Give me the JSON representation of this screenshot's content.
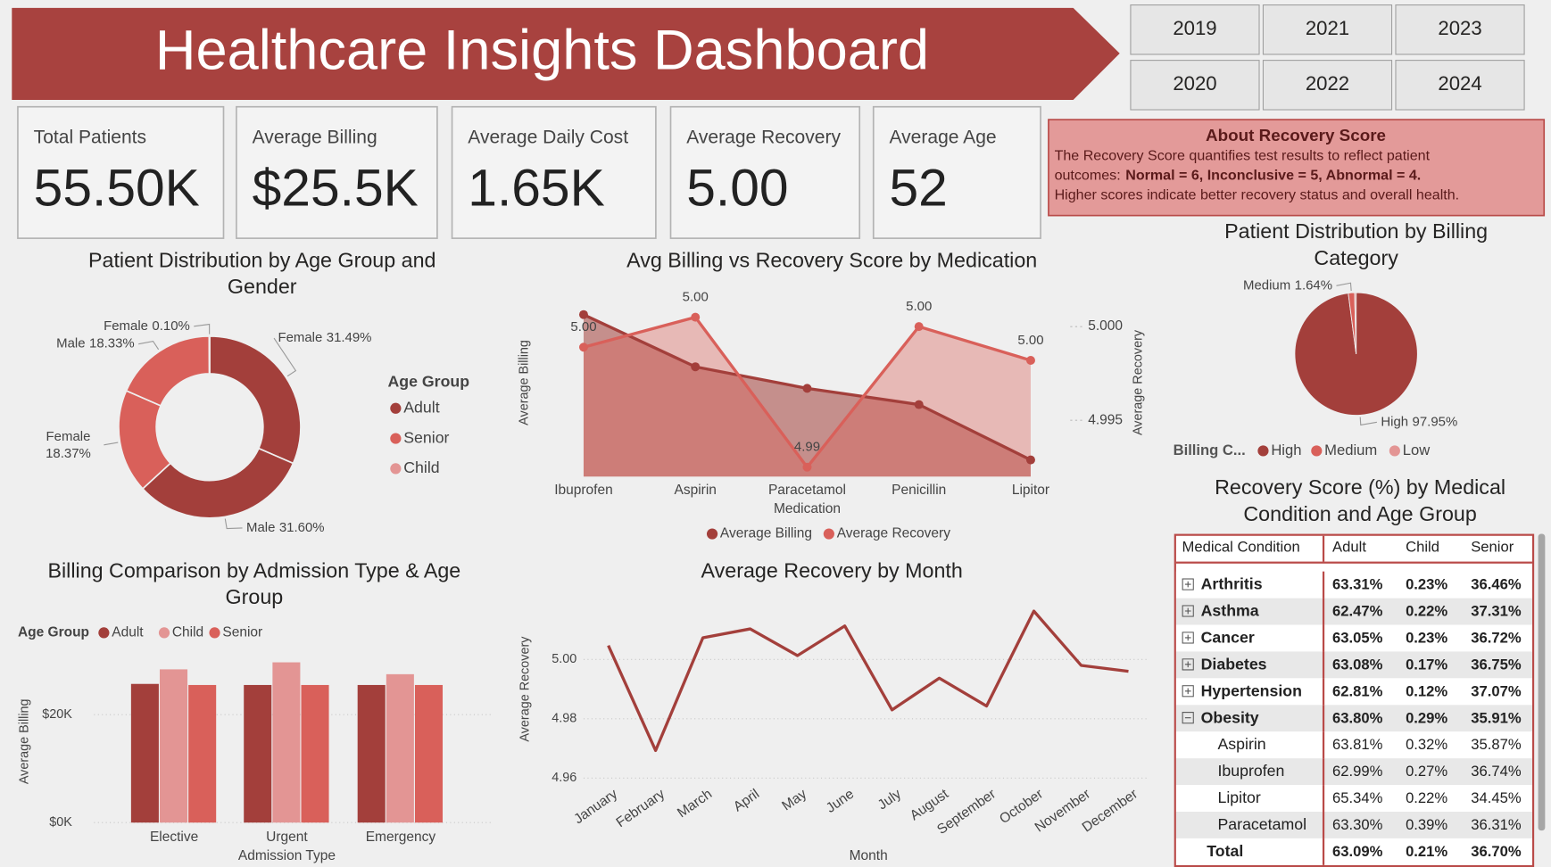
{
  "header": {
    "title": "Healthcare Insights Dashboard"
  },
  "years": [
    "2019",
    "2021",
    "2023",
    "2020",
    "2022",
    "2024"
  ],
  "kpis": [
    {
      "label": "Total Patients",
      "value": "55.50K"
    },
    {
      "label": "Average Billing",
      "value": "$25.5K"
    },
    {
      "label": "Average Daily Cost",
      "value": "1.65K"
    },
    {
      "label": "Average Recovery",
      "value": "5.00"
    },
    {
      "label": "Average Age",
      "value": "52"
    }
  ],
  "info": {
    "title": "About Recovery Score",
    "lines": [
      {
        "text": "The Recovery Score quantifies test results to reflect patient"
      },
      {
        "text": "outcomes:",
        "strong": "Normal = 6, Inconclusive = 5, Abnormal = 4."
      },
      {
        "text": "Higher scores indicate better recovery status and overall health."
      }
    ]
  },
  "chart_data": [
    {
      "type": "donut",
      "title": "Patient Distribution by Age Group and Gender",
      "categories": [
        "Female",
        "Male",
        "Female",
        "Male",
        "Female"
      ],
      "values": [
        31.49,
        31.6,
        18.37,
        18.33,
        0.1
      ],
      "value_labels": [
        "31.49%",
        "31.60%",
        "18.37%",
        "18.33%",
        "0.10%"
      ],
      "colors": [
        "#a33f3b",
        "#a33f3b",
        "#d9605a",
        "#d9605a",
        "#e39594"
      ],
      "legend": {
        "title": "Age Group",
        "items": [
          {
            "name": "Adult",
            "color": "#a33f3b"
          },
          {
            "name": "Senior",
            "color": "#d9605a"
          },
          {
            "name": "Child",
            "color": "#e39594"
          }
        ]
      }
    },
    {
      "type": "combo",
      "title": "Avg Billing vs Recovery Score by Medication",
      "x_label": "Medication",
      "y_label": "Average Billing",
      "y2_label": "Average Recovery",
      "categories": [
        "Ibuprofen",
        "Aspirin",
        "Paracetamol",
        "Penicillin",
        "Lipitor"
      ],
      "ylim": [
        25300,
        25700
      ],
      "y2lim": [
        4.992,
        5.0016
      ],
      "y2ticks": [
        {
          "value": 5,
          "label": "5.000"
        },
        4.995
      ],
      "series": [
        {
          "name": "Average Billing",
          "color": "#a33f3b",
          "values": [
            25660,
            25544,
            25496,
            25460,
            25337
          ]
        },
        {
          "name": "Average Recovery",
          "color": "#d9605a",
          "axis": "y2",
          "values": [
            4.9989,
            5.0005,
            4.9925,
            5.0,
            4.9982
          ],
          "value_labels": [
            "5.00",
            "5.00",
            "4.99",
            "5.00",
            "5.00"
          ]
        }
      ]
    },
    {
      "type": "pie",
      "title": "Patient Distribution by Billing Category",
      "legend_title": "Billing C...",
      "categories": [
        "High",
        "Medium",
        "Low"
      ],
      "values": [
        97.95,
        1.64,
        0.41
      ],
      "value_labels": [
        "97.95%",
        "1.64%",
        null
      ],
      "colors": [
        "#a33f3b",
        "#d9605a",
        "#e39594"
      ]
    },
    {
      "type": "bar",
      "title": "Billing Comparison by Admission Type & Age Group",
      "legend_title": "Age Group",
      "x_label": "Admission Type",
      "y_label": "Average Billing",
      "categories": [
        "Elective",
        "Urgent",
        "Emergency"
      ],
      "ylim": [
        0,
        30600
      ],
      "yticks": [
        {
          "value": 0,
          "label": "$0K"
        },
        {
          "value": 20000,
          "label": "$20K"
        }
      ],
      "grid": true,
      "series": [
        {
          "name": "Adult",
          "color": "#a33f3b",
          "values": [
            25700,
            25500,
            25500
          ]
        },
        {
          "name": "Child",
          "color": "#e39594",
          "values": [
            28400,
            29700,
            27500
          ]
        },
        {
          "name": "Senior",
          "color": "#d9605a",
          "values": [
            25500,
            25500,
            25500
          ]
        }
      ]
    },
    {
      "type": "line",
      "title": "Average Recovery by Month",
      "x_label": "Month",
      "y_label": "Average Recovery",
      "categories": [
        "January",
        "February",
        "March",
        "April",
        "May",
        "June",
        "July",
        "August",
        "September",
        "October",
        "November",
        "December"
      ],
      "values": [
        5.0047,
        4.9693,
        5.0073,
        5.0103,
        5.0013,
        5.0113,
        4.983,
        4.9937,
        4.9843,
        5.0163,
        4.998,
        4.996
      ],
      "color": "#a33f3b",
      "ylim": [
        4.957,
        5.019
      ],
      "yticks": [
        4.96,
        4.98,
        {
          "value": 5,
          "label": "5.00"
        }
      ],
      "grid": true
    }
  ],
  "table": {
    "title": "Recovery Score (%) by Medical Condition and Age Group",
    "columns": [
      "Medical Condition",
      "Adult",
      "Child",
      "Senior"
    ],
    "rows": [
      {
        "label": "Arthritis",
        "cells": [
          "63.31%",
          "0.23%",
          "36.46%"
        ]
      },
      {
        "label": "Asthma",
        "cells": [
          "62.47%",
          "0.22%",
          "37.31%"
        ]
      },
      {
        "label": "Cancer",
        "cells": [
          "63.05%",
          "0.23%",
          "36.72%"
        ]
      },
      {
        "label": "Diabetes",
        "cells": [
          "63.08%",
          "0.17%",
          "36.75%"
        ]
      },
      {
        "label": "Hypertension",
        "cells": [
          "62.81%",
          "0.12%",
          "37.07%"
        ]
      },
      {
        "label": "Obesity",
        "cells": [
          "63.80%",
          "0.29%",
          "35.91%"
        ],
        "children": [
          {
            "label": "Aspirin",
            "cells": [
              "63.81%",
              "0.32%",
              "35.87%"
            ]
          },
          {
            "label": "Ibuprofen",
            "cells": [
              "62.99%",
              "0.27%",
              "36.74%"
            ]
          },
          {
            "label": "Lipitor",
            "cells": [
              "65.34%",
              "0.22%",
              "34.45%"
            ]
          },
          {
            "label": "Paracetamol",
            "cells": [
              "63.30%",
              "0.39%",
              "36.31%"
            ]
          }
        ]
      }
    ],
    "total": {
      "label": "Total",
      "cells": [
        "63.09%",
        "0.21%",
        "36.70%"
      ]
    }
  }
}
